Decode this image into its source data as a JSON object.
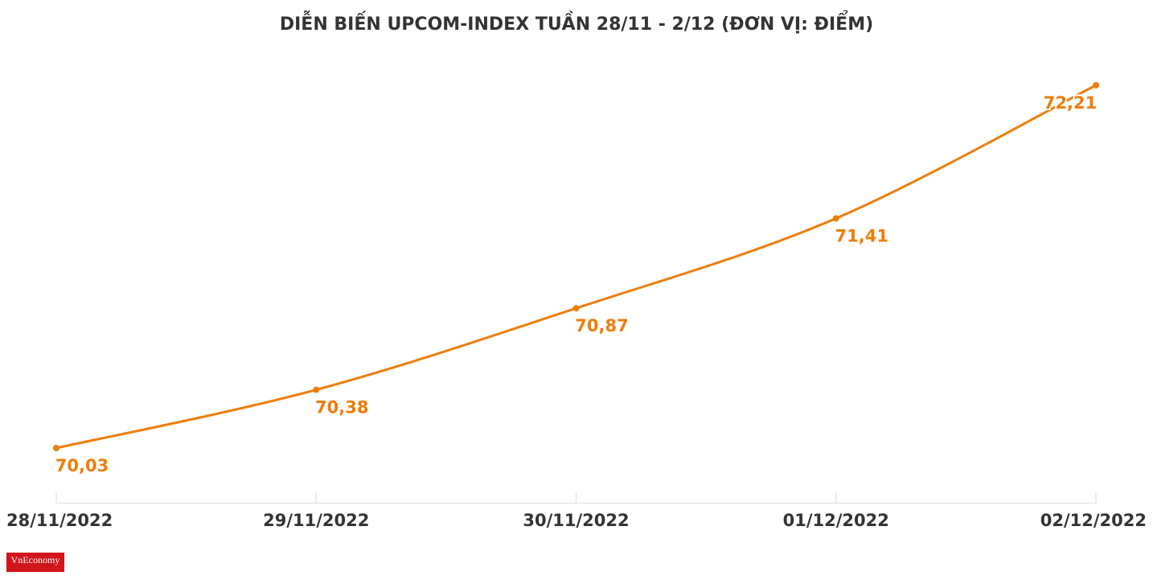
{
  "chart_data": {
    "type": "line",
    "title": "DIỄN BIẾN UPCOM-INDEX TUẦN 28/11 - 2/12 (ĐƠN VỊ: ĐIỂM)",
    "categories": [
      "28/11/2022",
      "29/11/2022",
      "30/11/2022",
      "01/12/2022",
      "02/12/2022"
    ],
    "series": [
      {
        "color": "#ee7d0b",
        "values": [
          70.03,
          70.38,
          70.87,
          71.41,
          72.21
        ],
        "value_labels": [
          "70,03",
          "70,38",
          "70,87",
          "71,41",
          "72,21"
        ]
      }
    ]
  },
  "logo": "VnEconomy"
}
